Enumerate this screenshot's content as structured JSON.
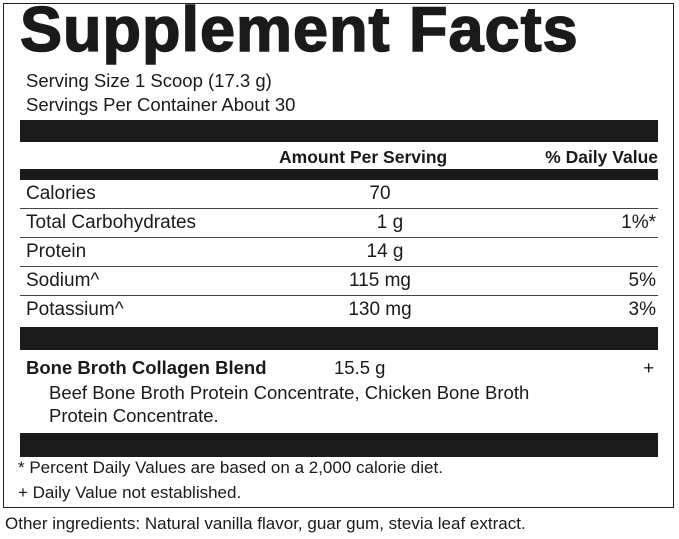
{
  "title": "Supplement Facts",
  "serving_size": "Serving Size 1 Scoop (17.3 g)",
  "servings_per_container": "Servings Per Container About 30",
  "header": {
    "amount": "Amount Per Serving",
    "daily_value": "% Daily Value"
  },
  "rows": [
    {
      "name": "Calories",
      "amount": "70",
      "dv": ""
    },
    {
      "name": "Total Carbohydrates",
      "amount": "1 g",
      "dv": "1%*"
    },
    {
      "name": "Protein",
      "amount": "14 g",
      "dv": ""
    },
    {
      "name": "Sodium^",
      "amount": "115 mg",
      "dv": "5%"
    },
    {
      "name": "Potassium^",
      "amount": "130 mg",
      "dv": "3%"
    }
  ],
  "blend": {
    "name": "Bone Broth Collagen Blend",
    "amount": "15.5 g",
    "dv": "+",
    "ingredients_line1": "Beef Bone Broth Protein Concentrate, Chicken Bone Broth",
    "ingredients_line2": "Protein Concentrate."
  },
  "footnotes": [
    "* Percent Daily Values are based on a 2,000 calorie diet.",
    "+ Daily Value not established."
  ],
  "other_ingredients": "Other ingredients: Natural vanilla flavor, guar gum, stevia leaf extract."
}
